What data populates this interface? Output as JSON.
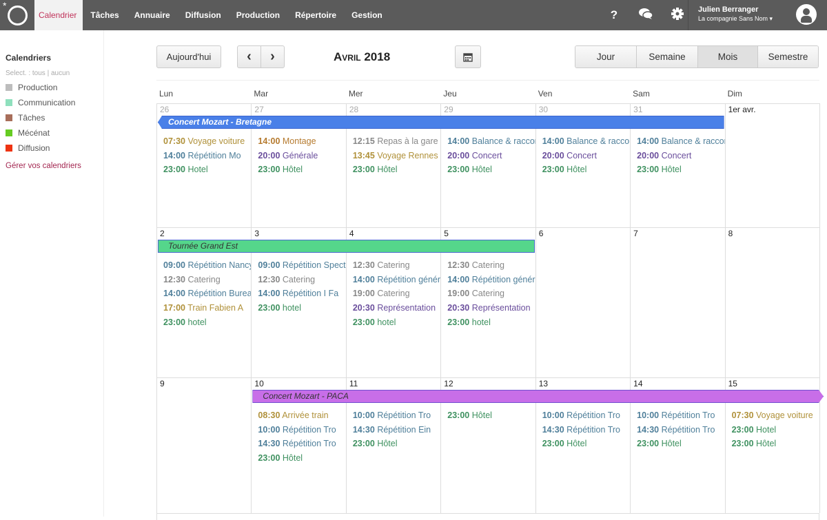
{
  "nav": {
    "items": [
      "Calendrier",
      "Tâches",
      "Annuaire",
      "Diffusion",
      "Production",
      "Répertoire",
      "Gestion"
    ],
    "active": 0,
    "icons": [
      "help-icon",
      "chat-icon",
      "gear-icon"
    ],
    "help": "?",
    "user_name": "Julien Berranger",
    "company": "La compagnie Sans Nom ▾"
  },
  "sidebar": {
    "title": "Calendriers",
    "select": "Select. : tous | aucun",
    "calendars": [
      {
        "label": "Production",
        "color": "#bdbdbd"
      },
      {
        "label": "Communication",
        "color": "#8fe0bd"
      },
      {
        "label": "Tâches",
        "color": "#a86e5a"
      },
      {
        "label": "Mécénat",
        "color": "#66cc22"
      },
      {
        "label": "Diffusion",
        "color": "#ee3311"
      }
    ],
    "manage": "Gérer vos calendriers"
  },
  "toolbar": {
    "today": "Aujourd'hui",
    "prev": "‹",
    "next": "›",
    "title": "Avril 2018",
    "calendar_icon": "calendar-icon",
    "views": [
      "Jour",
      "Semaine",
      "Mois",
      "Semestre"
    ],
    "active_view": 2
  },
  "weekdays": [
    "Lun",
    "Mar",
    "Mer",
    "Jeu",
    "Ven",
    "Sam",
    "Dim"
  ],
  "weeks": [
    {
      "days": [
        {
          "n": "26",
          "muted": true,
          "ev": [
            [
              "07:30",
              "Voyage voiture",
              "#b0913a"
            ],
            [
              "14:00",
              "Répétition Mo",
              "#4f7f9a"
            ],
            [
              "23:00",
              "Hotel",
              "#3f9160"
            ]
          ]
        },
        {
          "n": "27",
          "muted": true,
          "ev": [
            [
              "14:00",
              "Montage",
              "#b57a2e"
            ],
            [
              "20:00",
              "Générale",
              "#6a4e9c"
            ],
            [
              "23:00",
              "Hôtel",
              "#3f9160"
            ]
          ]
        },
        {
          "n": "28",
          "muted": true,
          "ev": [
            [
              "12:15",
              "Repas à la gare",
              "#888888"
            ],
            [
              "13:45",
              "Voyage Rennes",
              "#b0913a"
            ],
            [
              "23:00",
              "Hôtel",
              "#3f9160"
            ]
          ]
        },
        {
          "n": "29",
          "muted": true,
          "ev": [
            [
              "14:00",
              "Balance & raccords",
              "#4f7f9a"
            ],
            [
              "20:00",
              "Concert",
              "#6a4e9c"
            ],
            [
              "23:00",
              "Hôtel",
              "#3f9160"
            ]
          ]
        },
        {
          "n": "30",
          "muted": true,
          "ev": [
            [
              "14:00",
              "Balance & raccords",
              "#4f7f9a"
            ],
            [
              "20:00",
              "Concert",
              "#6a4e9c"
            ],
            [
              "23:00",
              "Hôtel",
              "#3f9160"
            ]
          ]
        },
        {
          "n": "31",
          "muted": true,
          "ev": [
            [
              "14:00",
              "Balance & raccords",
              "#4f7f9a"
            ],
            [
              "20:00",
              "Concert",
              "#6a4e9c"
            ],
            [
              "23:00",
              "Hôtel",
              "#3f9160"
            ]
          ]
        },
        {
          "n": "1er avr.",
          "muted": false,
          "ev": []
        }
      ]
    },
    {
      "days": [
        {
          "n": "2",
          "ev": [
            [
              "09:00",
              "Répétition Nancy",
              "#4f7f9a"
            ],
            [
              "12:30",
              "Catering",
              "#888888"
            ],
            [
              "14:00",
              "Répétition Bureau",
              "#4f7f9a"
            ],
            [
              "17:00",
              "Train Fabien A",
              "#b0913a"
            ],
            [
              "23:00",
              "hotel",
              "#3f9160"
            ]
          ]
        },
        {
          "n": "3",
          "ev": [
            [
              "09:00",
              "Répétition Spectacle",
              "#4f7f9a"
            ],
            [
              "12:30",
              "Catering",
              "#888888"
            ],
            [
              "14:00",
              "Répétition I Fa",
              "#4f7f9a"
            ],
            [
              "23:00",
              "hotel",
              "#3f9160"
            ]
          ]
        },
        {
          "n": "4",
          "ev": [
            [
              "12:30",
              "Catering",
              "#888888"
            ],
            [
              "14:00",
              "Répétition générale",
              "#4f7f9a"
            ],
            [
              "19:00",
              "Catering",
              "#888888"
            ],
            [
              "20:30",
              "Représentation",
              "#6a4e9c"
            ],
            [
              "23:00",
              "hotel",
              "#3f9160"
            ]
          ]
        },
        {
          "n": "5",
          "ev": [
            [
              "12:30",
              "Catering",
              "#888888"
            ],
            [
              "14:00",
              "Répétition générale",
              "#4f7f9a"
            ],
            [
              "19:00",
              "Catering",
              "#888888"
            ],
            [
              "20:30",
              "Représentation",
              "#6a4e9c"
            ],
            [
              "23:00",
              "hotel",
              "#3f9160"
            ]
          ]
        },
        {
          "n": "6",
          "ev": []
        },
        {
          "n": "7",
          "ev": []
        },
        {
          "n": "8",
          "ev": []
        }
      ]
    },
    {
      "days": [
        {
          "n": "9",
          "ev": []
        },
        {
          "n": "10",
          "ev": [
            [
              "08:30",
              "Arrivée train",
              "#b0913a"
            ],
            [
              "10:00",
              "Répétition Tro",
              "#4f7f9a"
            ],
            [
              "14:30",
              "Répétition Tro",
              "#4f7f9a"
            ],
            [
              "23:00",
              "Hôtel",
              "#3f9160"
            ]
          ]
        },
        {
          "n": "11",
          "ev": [
            [
              "10:00",
              "Répétition Tro",
              "#4f7f9a"
            ],
            [
              "14:30",
              "Répétition Ein",
              "#4f7f9a"
            ],
            [
              "23:00",
              "Hôtel",
              "#3f9160"
            ]
          ]
        },
        {
          "n": "12",
          "ev": [
            [
              "23:00",
              "Hôtel",
              "#3f9160"
            ]
          ]
        },
        {
          "n": "13",
          "ev": [
            [
              "10:00",
              "Répétition Tro",
              "#4f7f9a"
            ],
            [
              "14:30",
              "Répétition Tro",
              "#4f7f9a"
            ],
            [
              "23:00",
              "Hôtel",
              "#3f9160"
            ]
          ]
        },
        {
          "n": "14",
          "ev": [
            [
              "10:00",
              "Répétition Tro",
              "#4f7f9a"
            ],
            [
              "14:30",
              "Répétition Tro",
              "#4f7f9a"
            ],
            [
              "23:00",
              "Hôtel",
              "#3f9160"
            ]
          ]
        },
        {
          "n": "15",
          "ev": [
            [
              "07:30",
              "Voyage voiture",
              "#b0913a"
            ],
            [
              "23:00",
              "Hotel",
              "#3f9160"
            ],
            [
              "23:00",
              "Hôtel",
              "#3f9160"
            ]
          ]
        }
      ]
    }
  ],
  "multi_day": [
    {
      "week": 0,
      "start": 0,
      "end": 5,
      "label": "Concert Mozart - Bretagne",
      "bg": "#4a80e8",
      "border": "#3a64d0",
      "text": "#ffffff",
      "continues_left": true,
      "continues_right": false
    },
    {
      "week": 1,
      "start": 0,
      "end": 3,
      "label": "Tournée Grand Est",
      "bg": "#55d68b",
      "border": "#4a6ad0",
      "text": "#333333",
      "continues_left": false,
      "continues_right": false
    },
    {
      "week": 2,
      "start": 1,
      "end": 6,
      "label": "Concert Mozart - PACA",
      "bg": "#c86ee8",
      "border": "#7050d0",
      "text": "#333333",
      "continues_left": false,
      "continues_right": true
    }
  ]
}
